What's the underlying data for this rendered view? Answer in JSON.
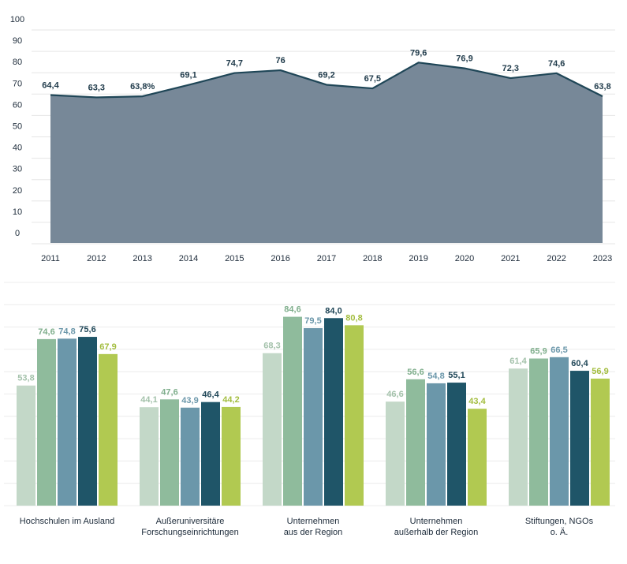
{
  "chart_data": [
    {
      "type": "area",
      "categories": [
        "2011",
        "2012",
        "2013",
        "2014",
        "2015",
        "2016",
        "2017",
        "2018",
        "2019",
        "2020",
        "2021",
        "2022",
        "2023"
      ],
      "values": [
        64.4,
        63.3,
        63.8,
        69.1,
        74.7,
        76,
        69.2,
        67.5,
        79.6,
        76.9,
        72.3,
        74.6,
        63.8
      ],
      "data_labels": [
        "64,4",
        "63,3",
        "63,8%",
        "69,1",
        "74,7",
        "76",
        "69,2",
        "67,5",
        "79,6",
        "76,9",
        "72,3",
        "74,6",
        "63,8"
      ],
      "yticks": [
        "0",
        "10",
        "20",
        "30",
        "40",
        "50",
        "60",
        "70",
        "80",
        "90",
        "100"
      ],
      "ylim": [
        0,
        100
      ],
      "grid": true,
      "colors": {
        "fill": "#778898",
        "line": "#1f4657",
        "grid": "#e6e6e6"
      }
    },
    {
      "type": "bar",
      "categories": [
        "Hochschulen im Ausland",
        "Außeruniversitäre\nForschungseinrichtungen",
        "Unternehmen\naus der Region",
        "Unternehmen\naußerhalb der Region",
        "Stiftungen, NGOs\no. Ä."
      ],
      "series_colors": [
        "#c3d8c8",
        "#8fbb9c",
        "#6b97aa",
        "#1f5568",
        "#b1c951"
      ],
      "label_colors": [
        "#a3c1aa",
        "#7fae8c",
        "#6b97aa",
        "#1f4657",
        "#a3bd3f"
      ],
      "values": [
        [
          53.8,
          74.6,
          74.8,
          75.6,
          67.9
        ],
        [
          44.1,
          47.6,
          43.9,
          46.4,
          44.2
        ],
        [
          68.3,
          84.6,
          79.5,
          84.0,
          80.8
        ],
        [
          46.6,
          56.6,
          54.8,
          55.1,
          43.4
        ],
        [
          61.4,
          65.9,
          66.5,
          60.4,
          56.9
        ]
      ],
      "data_labels": [
        [
          "53,8",
          "74,6",
          "74,8",
          "75,6",
          "67,9"
        ],
        [
          "44,1",
          "47,6",
          "43,9",
          "46,4",
          "44,2"
        ],
        [
          "68,3",
          "84,6",
          "79,5",
          "84,0",
          "80,8"
        ],
        [
          "46,6",
          "56,6",
          "54,8",
          "55,1",
          "43,4"
        ],
        [
          "61,4",
          "65,9",
          "66,5",
          "60,4",
          "56,9"
        ]
      ],
      "ylim": [
        0,
        100
      ],
      "grid": true
    }
  ]
}
